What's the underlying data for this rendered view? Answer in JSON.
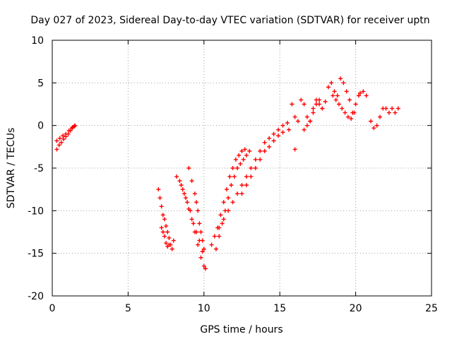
{
  "chart_data": {
    "type": "scatter",
    "title": "Day 027 of 2023, Sidereal Day-to-day VTEC variation (SDTVAR) for receiver uptn",
    "xlabel": "GPS time / hours",
    "ylabel": "SDTVAR / TECUs",
    "xlim": [
      0,
      25
    ],
    "ylim": [
      -20,
      10
    ],
    "x_ticks": [
      0,
      5,
      10,
      15,
      20,
      25
    ],
    "y_ticks": [
      -20,
      -15,
      -10,
      -5,
      0,
      5,
      10
    ],
    "grid": "dotted",
    "marker": "+",
    "color": "#ff0000",
    "series": [
      {
        "x": [
          0.3,
          0.45,
          0.6,
          0.75,
          0.9,
          1.05,
          1.2,
          1.35,
          1.5,
          0.3,
          0.5,
          0.7,
          0.9,
          1.1,
          1.3,
          1.45,
          7.0,
          7.1,
          7.2,
          7.3,
          7.4,
          7.5,
          7.6,
          7.7,
          7.8,
          7.9,
          8.0,
          7.2,
          7.3,
          7.4,
          7.5,
          7.6,
          7.7,
          8.2,
          8.4,
          8.6,
          8.8,
          9.0,
          9.2,
          9.4,
          9.6,
          9.8,
          10.0,
          10.1,
          8.5,
          8.7,
          8.9,
          9.1,
          9.3,
          9.5,
          9.7,
          9.9,
          9.0,
          9.2,
          9.4,
          9.5,
          9.6,
          9.7,
          9.8,
          9.9,
          10.0,
          10.5,
          10.7,
          10.9,
          11.1,
          11.3,
          11.5,
          11.7,
          11.9,
          12.1,
          12.3,
          12.5,
          12.7,
          10.8,
          11.0,
          11.2,
          11.4,
          11.6,
          11.8,
          12.0,
          12.2,
          12.4,
          12.6,
          12.8,
          13.0,
          11.0,
          11.3,
          11.6,
          11.9,
          12.2,
          12.5,
          12.8,
          13.1,
          13.4,
          13.7,
          14.0,
          14.3,
          14.6,
          14.9,
          15.2,
          15.5,
          12.5,
          12.8,
          13.1,
          13.4,
          13.7,
          14.0,
          14.3,
          14.6,
          14.9,
          15.2,
          15.6,
          15.8,
          16.0,
          16.2,
          16.4,
          16.6,
          16.8,
          17.0,
          17.2,
          17.4,
          17.6,
          17.8,
          18.0,
          16.6,
          16.8,
          17.0,
          17.2,
          17.4,
          17.6,
          17.8,
          18.2,
          18.4,
          18.6,
          18.8,
          19.0,
          19.2,
          19.4,
          19.6,
          19.8,
          20.0,
          20.2,
          18.5,
          18.7,
          18.9,
          19.1,
          19.3,
          19.5,
          19.7,
          19.9,
          20.3,
          20.5,
          20.7,
          21.0,
          21.2,
          21.4,
          21.6,
          21.8,
          22.0,
          22.2,
          22.4,
          22.6,
          22.8,
          16.0
        ],
        "y": [
          -2.8,
          -2.3,
          -2.0,
          -1.6,
          -1.3,
          -1.0,
          -0.6,
          -0.2,
          0.0,
          -1.8,
          -1.5,
          -1.2,
          -1.0,
          -0.6,
          -0.3,
          -0.1,
          -7.5,
          -8.5,
          -9.5,
          -10.5,
          -11.0,
          -11.8,
          -12.5,
          -13.2,
          -14.0,
          -14.5,
          -13.5,
          -12.0,
          -12.5,
          -13.0,
          -13.8,
          -14.2,
          -14.0,
          -6.0,
          -6.5,
          -7.5,
          -8.5,
          -9.8,
          -11.0,
          -12.5,
          -14.0,
          -15.5,
          -16.5,
          -16.8,
          -7.0,
          -8.0,
          -9.0,
          -10.0,
          -11.5,
          -12.5,
          -13.5,
          -14.8,
          -5.0,
          -6.5,
          -8.0,
          -9.0,
          -10.0,
          -11.5,
          -12.5,
          -13.5,
          -14.5,
          -14.0,
          -13.0,
          -12.0,
          -10.5,
          -9.0,
          -7.5,
          -6.0,
          -5.0,
          -4.0,
          -3.5,
          -3.0,
          -2.8,
          -14.5,
          -13.0,
          -11.5,
          -10.0,
          -8.5,
          -7.0,
          -6.0,
          -5.0,
          -4.5,
          -4.0,
          -3.5,
          -3.0,
          -12.0,
          -11.0,
          -10.0,
          -9.0,
          -8.0,
          -7.0,
          -6.0,
          -5.0,
          -4.0,
          -3.0,
          -2.0,
          -1.5,
          -1.0,
          -0.5,
          0.0,
          0.3,
          -8.0,
          -7.0,
          -6.0,
          -5.0,
          -4.0,
          -3.0,
          -2.5,
          -1.8,
          -1.2,
          -0.8,
          -0.5,
          2.5,
          1.0,
          0.5,
          3.0,
          2.5,
          1.0,
          0.5,
          2.0,
          3.0,
          2.5,
          2.0,
          2.8,
          -0.5,
          0.0,
          0.5,
          1.5,
          2.5,
          3.0,
          2.0,
          4.5,
          5.0,
          4.0,
          3.5,
          5.5,
          5.0,
          4.0,
          3.0,
          1.5,
          2.5,
          3.5,
          3.5,
          3.0,
          2.5,
          2.0,
          1.5,
          1.0,
          0.8,
          1.5,
          3.8,
          4.0,
          3.5,
          0.5,
          -0.3,
          0.0,
          1.0,
          2.0,
          2.0,
          1.5,
          2.0,
          1.5,
          2.0,
          -2.8
        ]
      }
    ]
  }
}
